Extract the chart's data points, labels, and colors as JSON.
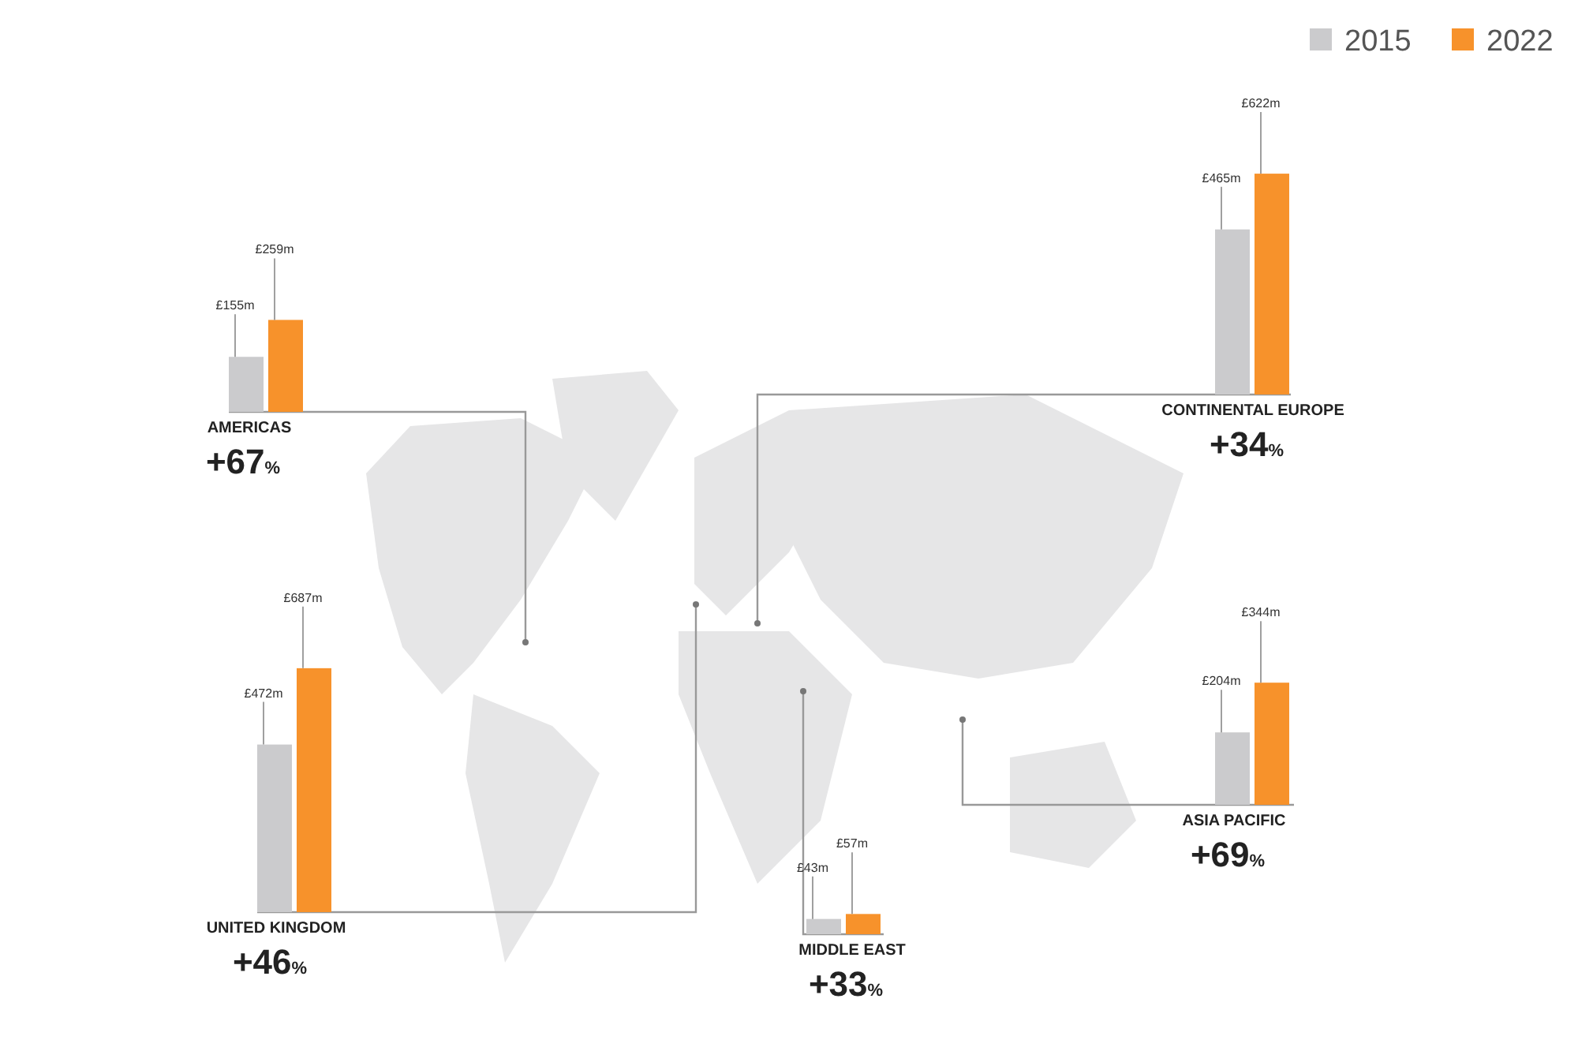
{
  "chart_data": [
    {
      "type": "bar",
      "categories": [
        "AMERICAS"
      ],
      "series": [
        {
          "color": "#cbcbcd",
          "values": [
            155
          ],
          "value_labels": [
            "£155m"
          ]
        },
        {
          "color": "#f7922b",
          "values": [
            259
          ],
          "value_labels": [
            "£259m"
          ]
        }
      ],
      "annotations": [
        "+67%"
      ]
    },
    {
      "type": "bar",
      "categories": [
        "CONTINENTAL EUROPE"
      ],
      "series": [
        {
          "color": "#cbcbcd",
          "values": [
            465
          ],
          "value_labels": [
            "£465m"
          ]
        },
        {
          "color": "#f7922b",
          "values": [
            622
          ],
          "value_labels": [
            "£622m"
          ]
        }
      ],
      "annotations": [
        "+34%"
      ]
    },
    {
      "type": "bar",
      "categories": [
        "UNITED KINGDOM"
      ],
      "series": [
        {
          "name": "2015",
          "color": "#cbcbcd",
          "values": [
            472
          ],
          "value_labels": [
            "£472m"
          ]
        },
        {
          "name": "2022",
          "color": "#f7922b",
          "values": [
            687
          ],
          "value_labels": [
            "£687m"
          ]
        }
      ],
      "annotations": [
        "+46%"
      ],
      "legend": "top right"
    },
    {
      "type": "bar",
      "categories": [
        "ASIA PACIFIC"
      ],
      "series": [
        {
          "color": "#cbcbcd",
          "values": [
            204
          ],
          "value_labels": [
            "£204m"
          ]
        },
        {
          "color": "#f7922b",
          "values": [
            344
          ],
          "value_labels": [
            "£344m"
          ]
        }
      ],
      "annotations": [
        "+69%"
      ]
    },
    {
      "type": "bar",
      "categories": [
        "MIDDLE EAST"
      ],
      "series": [
        {
          "color": "#cbcbcd",
          "values": [
            43
          ],
          "value_labels": [
            "£43m"
          ]
        },
        {
          "color": "#f7922b",
          "values": [
            57
          ],
          "value_labels": [
            "£57m"
          ]
        }
      ],
      "annotations": [
        "+33%"
      ]
    }
  ]
}
